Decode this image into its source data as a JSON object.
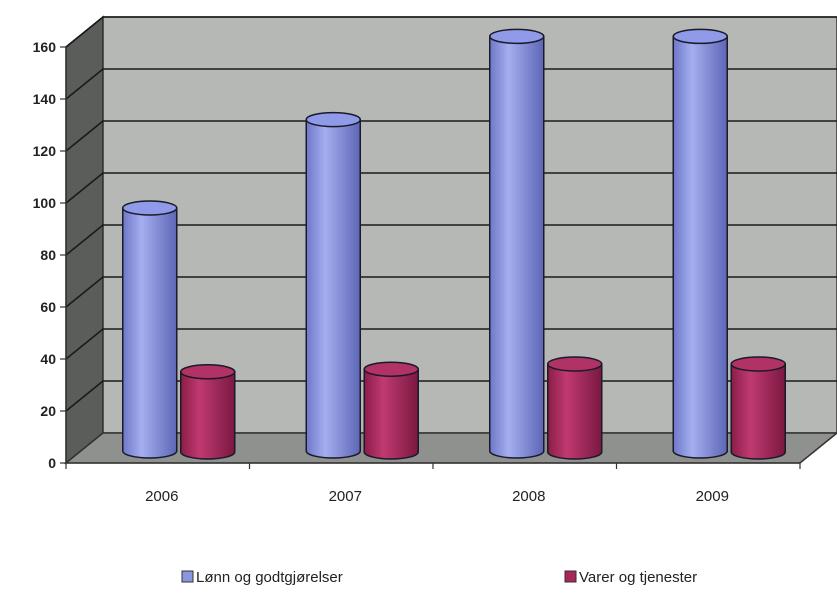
{
  "chart_data": {
    "type": "bar",
    "style": "3d-cylinder",
    "categories": [
      "2006",
      "2007",
      "2008",
      "2009"
    ],
    "series": [
      {
        "name": "Lønn og godtgjørelser",
        "values": [
          95,
          129,
          161,
          161
        ],
        "color": "#8b96e0"
      },
      {
        "name": "Varer og tjenester",
        "values": [
          32,
          33,
          35,
          35
        ],
        "color": "#a8265a"
      }
    ],
    "ylim": [
      0,
      160
    ],
    "yticks": [
      "0",
      "20",
      "40",
      "60",
      "80",
      "100",
      "120",
      "140",
      "160"
    ],
    "grid": true,
    "legend_position": "bottom",
    "wall_color": "#b5b8b4",
    "floor_color": "#8e918d"
  }
}
